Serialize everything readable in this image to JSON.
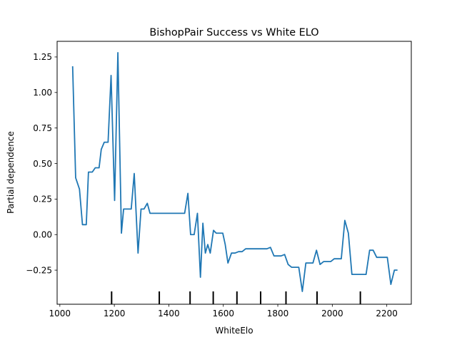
{
  "chart_data": {
    "type": "line",
    "title": "BishopPair Success vs White ELO",
    "xlabel": "WhiteElo",
    "ylabel": "Partial dependence",
    "xlim": [
      990,
      2290
    ],
    "ylim": [
      -0.49,
      1.36
    ],
    "xticks": [
      1000,
      1200,
      1400,
      1600,
      1800,
      2000,
      2200
    ],
    "xtick_labels": [
      "1000",
      "1200",
      "1400",
      "1600",
      "1800",
      "2000",
      "2200"
    ],
    "yticks": [
      -0.25,
      0.0,
      0.25,
      0.5,
      0.75,
      1.0,
      1.25
    ],
    "ytick_labels": [
      "−0.25",
      "0.00",
      "0.25",
      "0.50",
      "0.75",
      "1.00",
      "1.25"
    ],
    "grid": false,
    "series": [
      {
        "color": "#1f77b4",
        "x": [
          1047,
          1058,
          1072,
          1083,
          1097,
          1105,
          1119,
          1130,
          1144,
          1152,
          1163,
          1177,
          1188,
          1201,
          1213,
          1226,
          1234,
          1248,
          1262,
          1273,
          1287,
          1298,
          1309,
          1321,
          1331,
          1343,
          1356,
          1369,
          1381,
          1393,
          1405,
          1418,
          1431,
          1443,
          1458,
          1470,
          1480,
          1493,
          1505,
          1516,
          1525,
          1534,
          1543,
          1552,
          1564,
          1574,
          1586,
          1598,
          1607,
          1617,
          1630,
          1643,
          1656,
          1669,
          1682,
          1695,
          1708,
          1721,
          1734,
          1747,
          1760,
          1773,
          1786,
          1799,
          1812,
          1825,
          1838,
          1851,
          1864,
          1877,
          1890,
          1903,
          1916,
          1929,
          1942,
          1955,
          1968,
          1981,
          1994,
          2007,
          2020,
          2033,
          2046,
          2059,
          2072,
          2085,
          2098,
          2111,
          2124,
          2137,
          2150,
          2163,
          2176,
          2189,
          2202,
          2215,
          2228,
          2237
        ],
        "y": [
          1.18,
          0.4,
          0.32,
          0.07,
          0.07,
          0.44,
          0.44,
          0.47,
          0.47,
          0.6,
          0.65,
          0.65,
          1.12,
          0.24,
          1.28,
          0.01,
          0.18,
          0.18,
          0.18,
          0.43,
          -0.13,
          0.18,
          0.18,
          0.22,
          0.15,
          0.15,
          0.15,
          0.15,
          0.15,
          0.15,
          0.15,
          0.15,
          0.15,
          0.15,
          0.15,
          0.29,
          0.0,
          0.0,
          0.15,
          -0.3,
          0.08,
          -0.13,
          -0.07,
          -0.13,
          0.03,
          0.01,
          0.01,
          0.01,
          -0.07,
          -0.2,
          -0.13,
          -0.13,
          -0.12,
          -0.12,
          -0.1,
          -0.1,
          -0.1,
          -0.1,
          -0.1,
          -0.1,
          -0.1,
          -0.09,
          -0.15,
          -0.15,
          -0.15,
          -0.14,
          -0.21,
          -0.23,
          -0.23,
          -0.23,
          -0.4,
          -0.2,
          -0.2,
          -0.2,
          -0.11,
          -0.21,
          -0.19,
          -0.19,
          -0.19,
          -0.17,
          -0.17,
          -0.17,
          0.1,
          0.01,
          -0.28,
          -0.28,
          -0.28,
          -0.28,
          -0.28,
          -0.11,
          -0.11,
          -0.16,
          -0.16,
          -0.16,
          -0.16,
          -0.35,
          -0.25,
          -0.25
        ]
      }
    ],
    "rug": [
      1190,
      1365,
      1478,
      1563,
      1650,
      1737,
      1830,
      1944,
      2103
    ]
  }
}
